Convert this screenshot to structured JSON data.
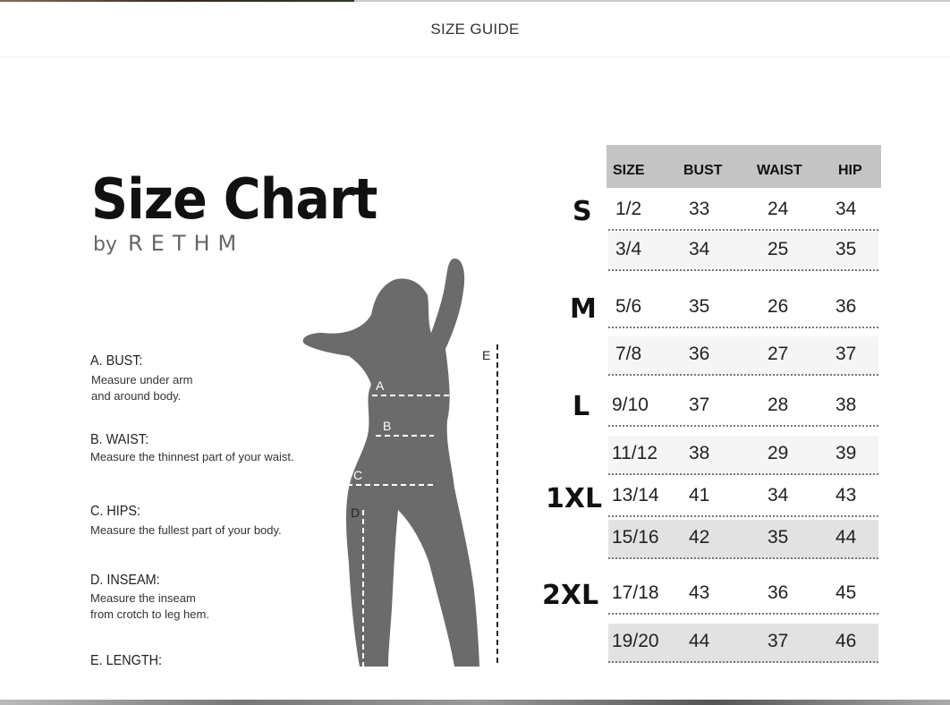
{
  "header": {
    "title": "SIZE GUIDE"
  },
  "chart": {
    "title": "Size Chart",
    "by": "by",
    "brand": "RETHM",
    "measurements": [
      {
        "heading": "A. BUST:",
        "desc": [
          "Measure under arm",
          "and around body."
        ]
      },
      {
        "heading": "B. WAIST:",
        "desc": [
          "Measure the thinnest part of your waist."
        ]
      },
      {
        "heading": "C. HIPS:",
        "desc": [
          "Measure the fullest part of your body."
        ]
      },
      {
        "heading": "D. INSEAM:",
        "desc": [
          "Measure the inseam",
          "from crotch to leg hem."
        ]
      },
      {
        "heading": "E. LENGTH:",
        "desc": []
      }
    ],
    "figure_labels": [
      "A",
      "B",
      "C",
      "D",
      "E"
    ],
    "columns": [
      "SIZE",
      "BUST",
      "WAIST",
      "HIP"
    ],
    "groups": [
      "S",
      "M",
      "L",
      "1XL",
      "2XL"
    ],
    "rows": [
      [
        "1/2",
        "33",
        "24",
        "34"
      ],
      [
        "3/4",
        "34",
        "25",
        "35"
      ],
      [
        "5/6",
        "35",
        "26",
        "36"
      ],
      [
        "7/8",
        "36",
        "27",
        "37"
      ],
      [
        "9/10",
        "37",
        "28",
        "38"
      ],
      [
        "11/12",
        "38",
        "29",
        "39"
      ],
      [
        "13/14",
        "41",
        "34",
        "43"
      ],
      [
        "15/16",
        "42",
        "35",
        "44"
      ],
      [
        "17/18",
        "43",
        "36",
        "45"
      ],
      [
        "19/20",
        "44",
        "37",
        "46"
      ]
    ]
  }
}
